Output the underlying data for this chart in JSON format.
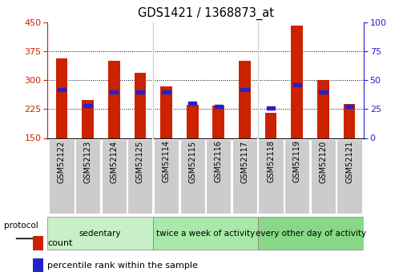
{
  "title": "GDS1421 / 1368873_at",
  "samples": [
    "GSM52122",
    "GSM52123",
    "GSM52124",
    "GSM52125",
    "GSM52114",
    "GSM52115",
    "GSM52116",
    "GSM52117",
    "GSM52118",
    "GSM52119",
    "GSM52120",
    "GSM52121"
  ],
  "counts": [
    355,
    248,
    350,
    318,
    283,
    235,
    233,
    350,
    215,
    440,
    300,
    237
  ],
  "percentiles": [
    42,
    28,
    40,
    40,
    40,
    30,
    27,
    42,
    26,
    46,
    40,
    27
  ],
  "ymin": 150,
  "ymax": 450,
  "yticks_left": [
    150,
    225,
    300,
    375,
    450
  ],
  "yticks_right": [
    0,
    25,
    50,
    75,
    100
  ],
  "groups": [
    {
      "label": "sedentary",
      "start": 0,
      "end": 4,
      "color": "#c8f0c8"
    },
    {
      "label": "twice a week of activity",
      "start": 4,
      "end": 8,
      "color": "#a8e8a8"
    },
    {
      "label": "every other day of activity",
      "start": 8,
      "end": 12,
      "color": "#88d888"
    }
  ],
  "bar_color": "#cc2200",
  "percentile_color": "#2222cc",
  "bar_width": 0.45,
  "left_axis_color": "#cc2200",
  "right_axis_color": "#2222cc",
  "background_color": "#ffffff",
  "grid_color": "#000000",
  "protocol_label": "protocol",
  "sample_label_bg": "#cccccc",
  "legend_count_color": "#cc2200",
  "legend_percentile_color": "#2222cc"
}
